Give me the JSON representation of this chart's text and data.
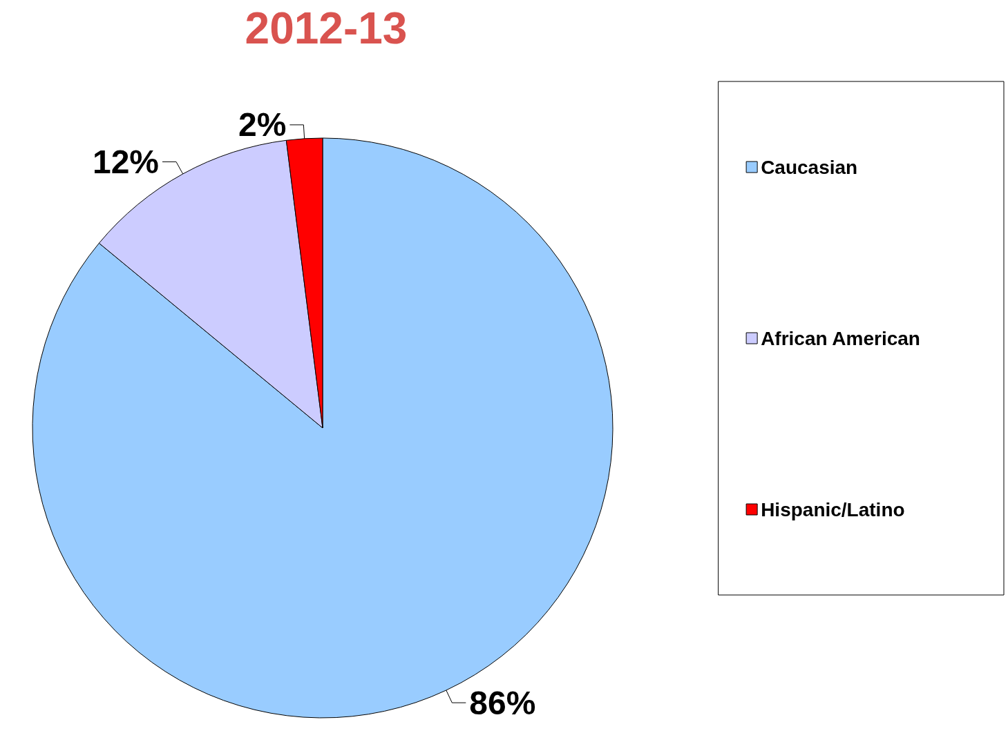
{
  "chart_data": {
    "type": "pie",
    "title": "2012-13",
    "categories": [
      "Caucasian",
      "African American",
      "Hispanic/Latino"
    ],
    "values": [
      86,
      12,
      2
    ],
    "colors": [
      "#99ccff",
      "#ccccff",
      "#ff0000"
    ],
    "value_labels": [
      "86%",
      "12%",
      "2%"
    ],
    "legend": "right"
  }
}
